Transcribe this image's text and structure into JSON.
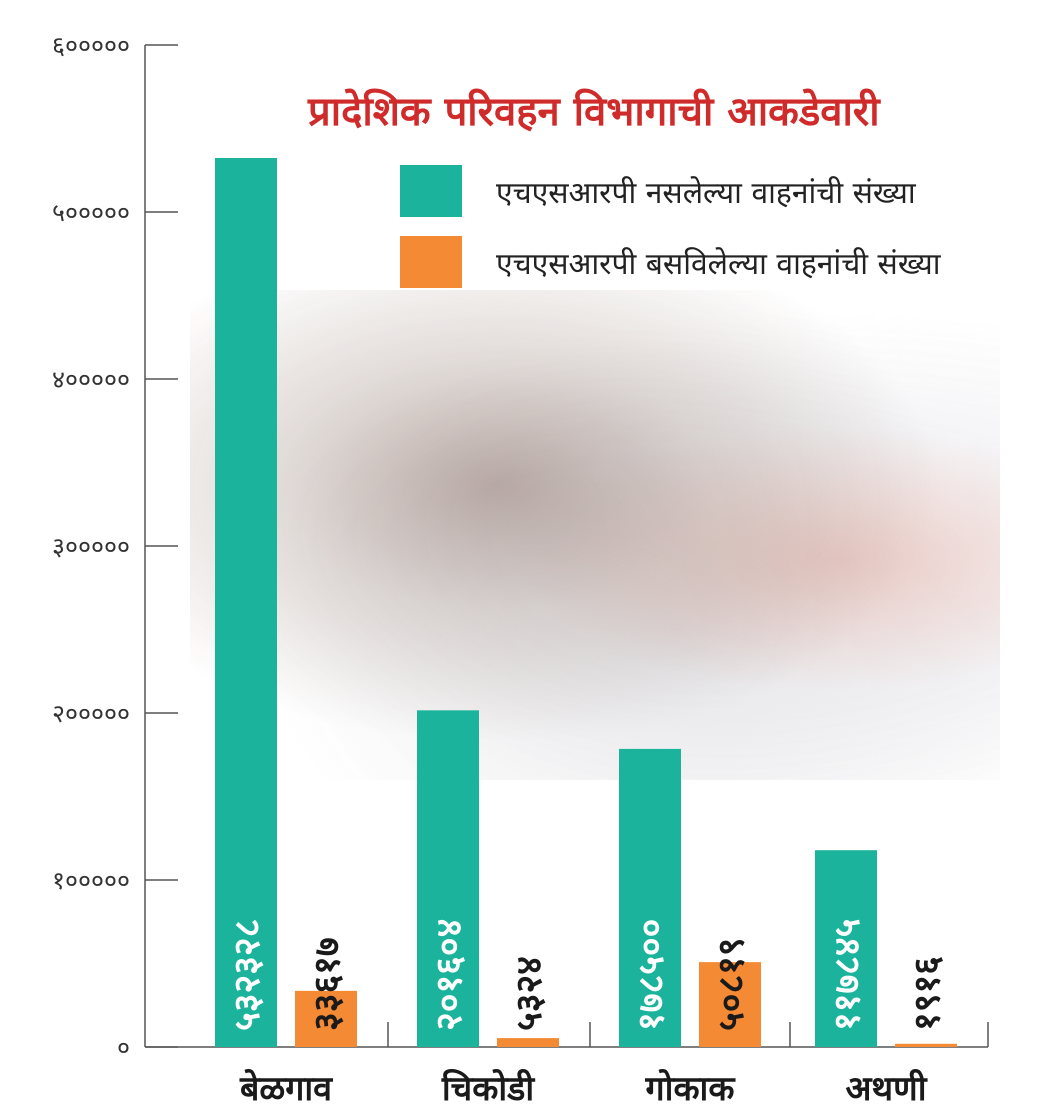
{
  "chart_data": {
    "type": "bar",
    "title": "प्रादेशिक परिवहन विभागाची आकडेवारी",
    "categories": [
      "बेळगाव",
      "चिकोडी",
      "गोकाक",
      "अथणी"
    ],
    "series": [
      {
        "name": "एचएसआरपी नसलेल्या वाहनांची संख्या",
        "color": "#1bb39b",
        "values": [
          532328,
          201604,
          178500,
          117845
        ],
        "value_labels": [
          "५३२३२८",
          "२०१६०४",
          "१७८५००",
          "११७८४५"
        ]
      },
      {
        "name": "एचएसआरपी बसविलेल्या वाहनांची संख्या",
        "color": "#f58a35",
        "values": [
          33617,
          5324,
          50819,
          1916
        ],
        "value_labels": [
          "३३६१७",
          "५३२४",
          "५०८१९",
          "१९१६"
        ]
      }
    ],
    "ylim": [
      0,
      600000
    ],
    "yticks": [
      0,
      100000,
      200000,
      300000,
      400000,
      500000,
      600000
    ],
    "ytick_labels": [
      "०",
      "१०००००",
      "२०००००",
      "३०००००",
      "४०००००",
      "५०००००",
      "६०००००"
    ],
    "legend_position": "top-right",
    "grid": false
  }
}
